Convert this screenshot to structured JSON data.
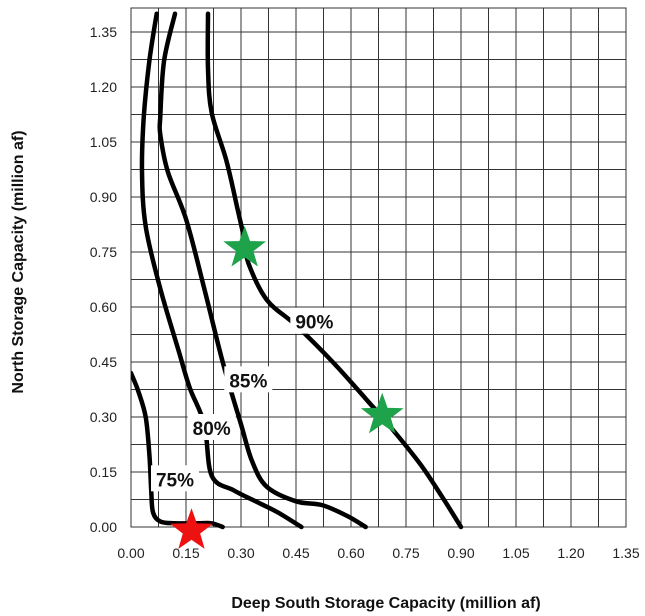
{
  "chart_data": {
    "type": "line",
    "title": "",
    "xlabel": "Deep South Storage Capacity (million af)",
    "ylabel": "North Storage Capacity (million af)",
    "xlim": [
      0,
      1.35
    ],
    "ylim": [
      0,
      1.35
    ],
    "xticks": [
      "0.00",
      "0.15",
      "0.30",
      "0.45",
      "0.60",
      "0.75",
      "0.90",
      "1.05",
      "1.20",
      "1.35"
    ],
    "yticks": [
      "0.00",
      "0.15",
      "0.30",
      "0.45",
      "0.60",
      "0.75",
      "0.90",
      "1.05",
      "1.20",
      "1.35"
    ],
    "grid": true,
    "gridlines_per_tick": 2,
    "series": [
      {
        "name": "75%",
        "x": [
          0.0,
          0.02,
          0.04,
          0.05,
          0.055,
          0.06,
          0.08,
          0.12,
          0.18,
          0.22,
          0.25
        ],
        "y": [
          0.42,
          0.37,
          0.3,
          0.2,
          0.1,
          0.04,
          0.015,
          0.01,
          0.01,
          0.01,
          0.0
        ]
      },
      {
        "name": "80%",
        "x": [
          0.07,
          0.05,
          0.035,
          0.03,
          0.04,
          0.08,
          0.13,
          0.16,
          0.2,
          0.22,
          0.28,
          0.34,
          0.4,
          0.465
        ],
        "y": [
          1.4,
          1.27,
          1.12,
          0.97,
          0.82,
          0.65,
          0.48,
          0.38,
          0.28,
          0.14,
          0.1,
          0.07,
          0.04,
          0.0
        ]
      },
      {
        "name": "85%",
        "x": [
          0.12,
          0.09,
          0.08,
          0.08,
          0.1,
          0.15,
          0.2,
          0.25,
          0.3,
          0.33,
          0.37,
          0.45,
          0.52,
          0.59,
          0.64
        ],
        "y": [
          1.4,
          1.27,
          1.12,
          1.07,
          0.97,
          0.84,
          0.65,
          0.45,
          0.28,
          0.18,
          0.11,
          0.07,
          0.06,
          0.03,
          0.0
        ]
      },
      {
        "name": "90%",
        "x": [
          0.21,
          0.21,
          0.22,
          0.26,
          0.29,
          0.31,
          0.32,
          0.37,
          0.45,
          0.55,
          0.64,
          0.71,
          0.79,
          0.85,
          0.9
        ],
        "y": [
          1.4,
          1.25,
          1.13,
          1.0,
          0.87,
          0.78,
          0.72,
          0.62,
          0.55,
          0.45,
          0.35,
          0.27,
          0.17,
          0.08,
          0.0
        ]
      }
    ],
    "curve_labels": [
      {
        "text": "75%",
        "x": 0.12,
        "y": 0.13
      },
      {
        "text": "80%",
        "x": 0.22,
        "y": 0.27
      },
      {
        "text": "85%",
        "x": 0.32,
        "y": 0.4
      },
      {
        "text": "90%",
        "x": 0.5,
        "y": 0.56
      }
    ],
    "markers": [
      {
        "shape": "star",
        "color": "#1fa34a",
        "x": 0.31,
        "y": 0.76
      },
      {
        "shape": "star",
        "color": "#1fa34a",
        "x": 0.685,
        "y": 0.305
      },
      {
        "shape": "star",
        "color": "#ee1111",
        "x": 0.165,
        "y": -0.01
      }
    ],
    "line_color": "#000000",
    "grid_color": "#333333"
  }
}
